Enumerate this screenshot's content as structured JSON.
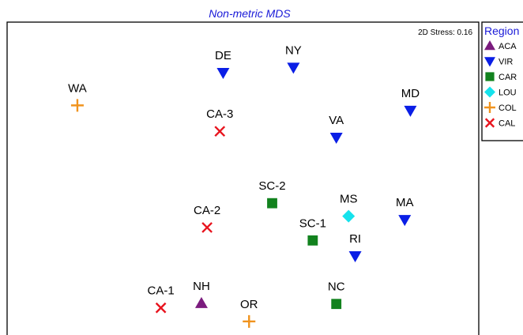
{
  "chart_data": {
    "type": "scatter",
    "title": "Non-metric MDS",
    "stress_label": "2D Stress: 0.16",
    "legend_title": "Region",
    "legend_position": "right",
    "xlim": [
      0,
      100
    ],
    "ylim": [
      0,
      100
    ],
    "grid": false,
    "groups": [
      {
        "name": "ACA",
        "marker": "triangle-up",
        "color": "#7b1c7e"
      },
      {
        "name": "VIR",
        "marker": "triangle-down",
        "color": "#0a1ee6"
      },
      {
        "name": "CAR",
        "marker": "square",
        "color": "#12821e"
      },
      {
        "name": "LOU",
        "marker": "diamond",
        "color": "#15e2ec"
      },
      {
        "name": "COL",
        "marker": "plus",
        "color": "#f0931e"
      },
      {
        "name": "CAL",
        "marker": "cross",
        "color": "#e8141e"
      }
    ],
    "points": [
      {
        "label": "DE",
        "group": "VIR",
        "x": 45.8,
        "y": 84.4
      },
      {
        "label": "NY",
        "group": "VIR",
        "x": 60.7,
        "y": 86.0
      },
      {
        "label": "MD",
        "group": "VIR",
        "x": 85.5,
        "y": 72.7
      },
      {
        "label": "VA",
        "group": "VIR",
        "x": 69.8,
        "y": 64.4
      },
      {
        "label": "MA",
        "group": "VIR",
        "x": 84.3,
        "y": 39.0
      },
      {
        "label": "RI",
        "group": "VIR",
        "x": 73.8,
        "y": 27.8
      },
      {
        "label": "SC-2",
        "group": "CAR",
        "x": 56.2,
        "y": 44.1
      },
      {
        "label": "SC-1",
        "group": "CAR",
        "x": 64.8,
        "y": 32.6
      },
      {
        "label": "NC",
        "group": "CAR",
        "x": 69.8,
        "y": 13.0
      },
      {
        "label": "MS",
        "group": "LOU",
        "x": 72.4,
        "y": 40.1
      },
      {
        "label": "WA",
        "group": "COL",
        "x": 14.9,
        "y": 74.3
      },
      {
        "label": "OR",
        "group": "COL",
        "x": 51.3,
        "y": 7.6
      },
      {
        "label": "CA-3",
        "group": "CAL",
        "x": 45.1,
        "y": 66.3
      },
      {
        "label": "CA-2",
        "group": "CAL",
        "x": 42.4,
        "y": 36.6
      },
      {
        "label": "CA-1",
        "group": "CAL",
        "x": 32.6,
        "y": 11.8
      },
      {
        "label": "NH",
        "group": "ACA",
        "x": 41.2,
        "y": 13.2
      }
    ]
  }
}
